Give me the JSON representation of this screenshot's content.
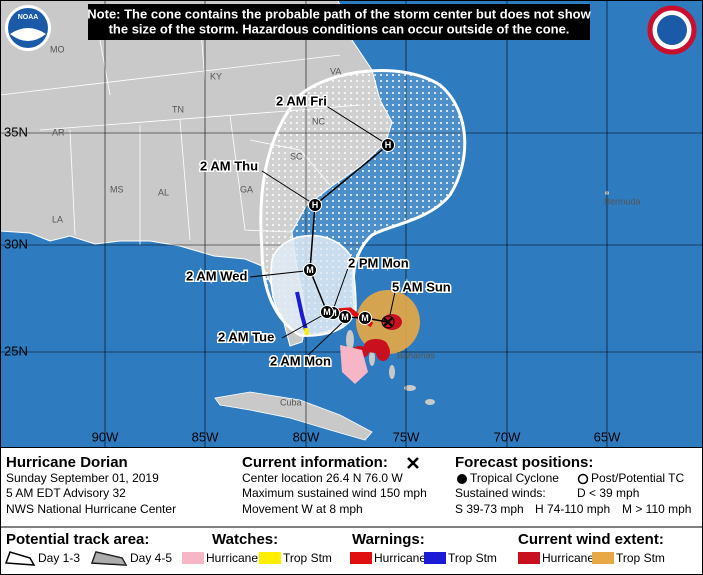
{
  "note": [
    "Note: The cone contains the probable path of the storm center but does not show",
    "the size of the storm. Hazardous conditions can occur outside of the cone."
  ],
  "logo": "NOAA",
  "places": [
    "MO",
    "KY",
    "VA",
    "TN",
    "NC",
    "AR",
    "SC",
    "MS",
    "AL",
    "GA",
    "LA",
    "Bermuda",
    "Bahamas",
    "Cuba"
  ],
  "latitudes": [
    "35N",
    "30N",
    "25N"
  ],
  "longitudes": [
    "90W",
    "85W",
    "80W",
    "75W",
    "70W",
    "65W"
  ],
  "markers": [
    "M",
    "M",
    "M",
    "M",
    "M",
    "H",
    "H"
  ],
  "time_labels": [
    "2 AM Mon",
    "2 PM Mon",
    "2 AM Tue",
    "2 AM Wed",
    "2 AM Thu",
    "2 AM Fri"
  ],
  "current_label": "5 AM Sun",
  "info": {
    "storm": "Hurricane Dorian",
    "date": "Sunday September 01, 2019",
    "advisory": "5 AM EDT Advisory 32",
    "center": "NWS National Hurricane Center"
  },
  "current": {
    "title": "Current information:",
    "lines": [
      "Center location 26.4 N 76.0 W",
      "Maximum sustained wind 150 mph",
      "Movement W at 8 mph"
    ]
  },
  "forecast": {
    "title": "Forecast positions:",
    "tropical": "Tropical Cyclone",
    "post": "Post/Potential TC",
    "winds_title": "Sustained winds:",
    "winds": [
      "D < 39 mph",
      "S 39-73 mph",
      "H 74-110 mph",
      "M > 110 mph"
    ]
  },
  "legend": {
    "track": {
      "title": "Potential track area:",
      "items": [
        "Day 1-3",
        "Day 4-5"
      ]
    },
    "watches": {
      "title": "Watches:",
      "items": [
        "Hurricane",
        "Trop Stm"
      ]
    },
    "warnings": {
      "title": "Warnings:",
      "items": [
        "Hurricane",
        "Trop Stm"
      ]
    },
    "wind": {
      "title": "Current wind extent:",
      "items": [
        "Hurricane",
        "Trop Stm"
      ]
    }
  }
}
